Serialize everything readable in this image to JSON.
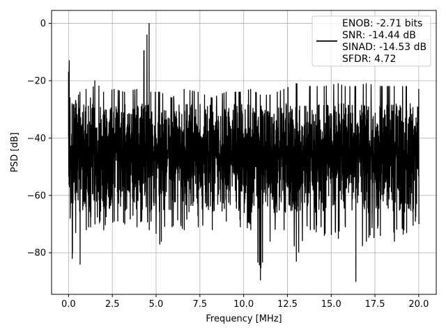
{
  "chart_data": {
    "type": "line",
    "title": "",
    "xlabel": "Frequency [MHz]",
    "ylabel": "PSD [dB]",
    "xlim": [
      -0.97,
      21.0
    ],
    "ylim": [
      -94.5,
      4.5
    ],
    "xticks": [
      0.0,
      2.5,
      5.0,
      7.5,
      10.0,
      12.5,
      15.0,
      17.5,
      20.0
    ],
    "xtick_labels": [
      "0.0",
      "2.5",
      "5.0",
      "7.5",
      "10.0",
      "12.5",
      "15.0",
      "17.5",
      "20.0"
    ],
    "yticks": [
      0,
      -20,
      -40,
      -60,
      -80
    ],
    "ytick_labels": [
      "0",
      "−20",
      "−40",
      "−60",
      "−80"
    ],
    "grid": true,
    "legend_position": "top-right",
    "legend_lines": [
      "ENOB: -2.71 bits",
      "SNR: -14.44 dB",
      "SINAD: -14.53 dB",
      "SFDR: 4.72"
    ],
    "series": [
      {
        "color": "#000000",
        "x": [
          0.0,
          0.04,
          0.08,
          0.2,
          0.4,
          0.65,
          1.0,
          1.25,
          1.5,
          2.0,
          2.6,
          3.2,
          3.9,
          4.6,
          4.7,
          5.2,
          5.9,
          6.6,
          7.4,
          8.2,
          9.0,
          9.8,
          10.4,
          10.95,
          11.5,
          12.3,
          13.0,
          13.8,
          14.6,
          15.4,
          15.8,
          16.4,
          17.0,
          17.8,
          18.6,
          19.3,
          20.0
        ],
        "max": [
          -17,
          -13,
          -26,
          -28,
          -27,
          -24,
          -23,
          -26,
          -20,
          -24,
          -23,
          -24,
          -23,
          0,
          -24,
          -24,
          -26,
          -23,
          -24,
          -26,
          -24,
          -24,
          -23,
          -25,
          -25,
          -23,
          -21,
          -22,
          -22,
          -21,
          -22,
          -22,
          -21,
          -22,
          -22,
          -22,
          -23
        ],
        "min": [
          -52,
          -57,
          -68,
          -82,
          -73,
          -84,
          -72,
          -71,
          -70,
          -72,
          -69,
          -70,
          -71,
          -72,
          -69,
          -77,
          -71,
          -72,
          -71,
          -72,
          -69,
          -71,
          -72,
          -89.5,
          -76,
          -72,
          -83,
          -72,
          -74,
          -75,
          -71,
          -90,
          -76,
          -74,
          -76,
          -73,
          -70
        ]
      }
    ]
  }
}
